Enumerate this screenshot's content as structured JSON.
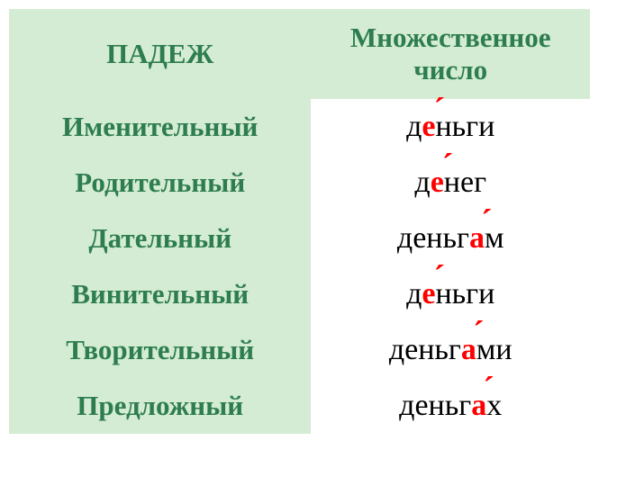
{
  "header": {
    "col1": "ПАДЕЖ",
    "col2_line1": "Множественное",
    "col2_line2": "число"
  },
  "rows": [
    {
      "case": "Именительный",
      "pre": "д",
      "stress": "е",
      "post": "ньги"
    },
    {
      "case": "Родительный",
      "pre": "д",
      "stress": "е",
      "post": "нег"
    },
    {
      "case": "Дательный",
      "pre": "деньг",
      "stress": "а",
      "post": "м"
    },
    {
      "case": "Винительный",
      "pre": "д",
      "stress": "е",
      "post": "ньги"
    },
    {
      "case": "Творительный",
      "pre": "деньг",
      "stress": "а",
      "post": "ми"
    },
    {
      "case": "Предложный",
      "pre": "деньг",
      "stress": "а",
      "post": "х"
    }
  ],
  "colors": {
    "header_bg": "#d4ecd4",
    "header_text": "#2e7d4f",
    "word_text": "#000000",
    "stress_color": "#ff0000",
    "page_bg": "#ffffff"
  }
}
